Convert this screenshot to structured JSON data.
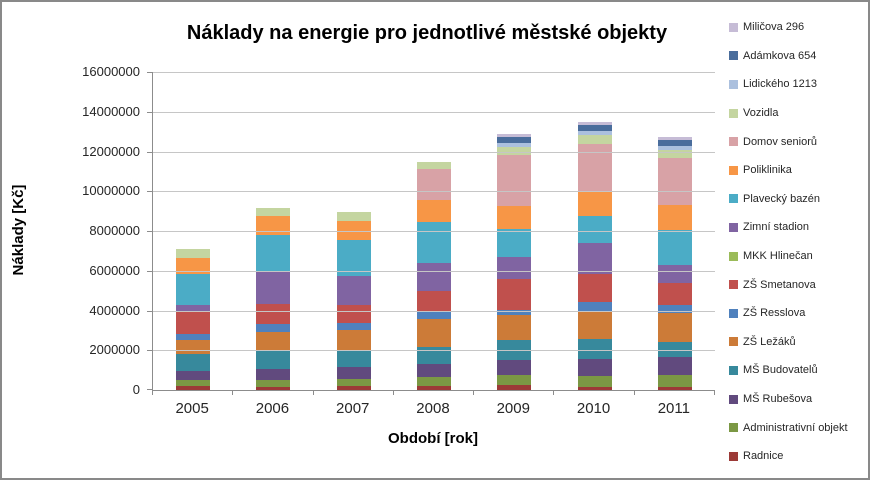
{
  "chart_data": {
    "type": "bar",
    "stacked": true,
    "title": "Náklady na energie pro jednotlivé městské objekty",
    "xlabel": "Období [rok]",
    "ylabel": "Náklady [Kč]",
    "ylim": [
      0,
      16000000
    ],
    "ytick_step": 2000000,
    "ytick_labels": [
      "0",
      "2000000",
      "4000000",
      "6000000",
      "8000000",
      "10000000",
      "12000000",
      "14000000",
      "16000000"
    ],
    "grid": true,
    "legend_position": "right",
    "legend_order": "top-of-stack-first",
    "categories": [
      "2005",
      "2006",
      "2007",
      "2008",
      "2009",
      "2010",
      "2011"
    ],
    "series": [
      {
        "name": "Radnice",
        "color": "#9c3a37",
        "values": [
          200000,
          150000,
          200000,
          200000,
          250000,
          150000,
          150000
        ]
      },
      {
        "name": "Administrativní objekt",
        "color": "#7b9844",
        "values": [
          300000,
          350000,
          350000,
          450000,
          500000,
          550000,
          600000
        ]
      },
      {
        "name": "MŠ Rubešova",
        "color": "#614a7e",
        "values": [
          450000,
          550000,
          600000,
          650000,
          750000,
          850000,
          900000
        ]
      },
      {
        "name": "MŠ Budovatelů",
        "color": "#37899c",
        "values": [
          850000,
          900000,
          850000,
          850000,
          1000000,
          1000000,
          750000
        ]
      },
      {
        "name": "ZŠ Ležáků",
        "color": "#cc7b38",
        "values": [
          700000,
          950000,
          1000000,
          1400000,
          1250000,
          1450000,
          1500000
        ]
      },
      {
        "name": "ZŠ Resslova",
        "color": "#4f81bd",
        "values": [
          300000,
          400000,
          350000,
          450000,
          300000,
          450000,
          400000
        ]
      },
      {
        "name": "ZŠ Smetanova",
        "color": "#c0504d",
        "values": [
          1150000,
          1050000,
          950000,
          1000000,
          1550000,
          1400000,
          1100000
        ]
      },
      {
        "name": "MKK Hlinečan",
        "color": "#9bbb59",
        "values": [
          0,
          0,
          0,
          0,
          0,
          0,
          0
        ]
      },
      {
        "name": "Zimní stadion",
        "color": "#8064a2",
        "values": [
          350000,
          1600000,
          1450000,
          1400000,
          1100000,
          1550000,
          900000
        ]
      },
      {
        "name": "Plavecký bazén",
        "color": "#4bacc6",
        "values": [
          1550000,
          1850000,
          1800000,
          2050000,
          1400000,
          1350000,
          1750000
        ]
      },
      {
        "name": "Poliklinika",
        "color": "#f79646",
        "values": [
          800000,
          950000,
          950000,
          1100000,
          1150000,
          1250000,
          1250000
        ]
      },
      {
        "name": "Domov seniorů",
        "color": "#d8a2a6",
        "values": [
          0,
          0,
          0,
          1550000,
          2600000,
          2400000,
          2400000
        ]
      },
      {
        "name": "Vozidla",
        "color": "#c4d5a0",
        "values": [
          450000,
          400000,
          450000,
          400000,
          400000,
          450000,
          400000
        ]
      },
      {
        "name": "Lidického 1213",
        "color": "#abc0de",
        "values": [
          0,
          0,
          0,
          0,
          200000,
          200000,
          200000
        ]
      },
      {
        "name": "Adámkova 654",
        "color": "#4a6d9c",
        "values": [
          0,
          0,
          0,
          0,
          300000,
          300000,
          300000
        ]
      },
      {
        "name": "Miličova 296",
        "color": "#c6bcd6",
        "values": [
          0,
          0,
          0,
          0,
          150000,
          150000,
          150000
        ]
      }
    ]
  }
}
